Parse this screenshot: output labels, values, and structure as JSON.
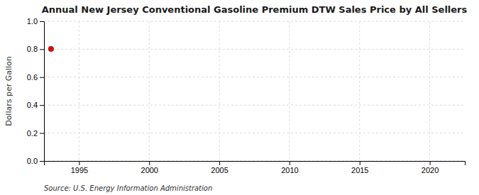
{
  "chart_data": {
    "type": "scatter",
    "title": "Annual New Jersey Conventional Gasoline Premium DTW Sales Price by All Sellers",
    "ylabel": "Dollars per Gallon",
    "source": "Source: U.S. Energy Information Administration",
    "x": [
      1993.0
    ],
    "values": [
      0.802
    ],
    "color": "#cc1111",
    "xlim": [
      1992.5,
      2022.5
    ],
    "ylim": [
      0.0,
      1.0
    ],
    "xticks": [
      1995,
      2000,
      2005,
      2010,
      2015,
      2020
    ],
    "yticks": [
      {
        "value": 0.0,
        "label": "0.0"
      },
      0.2,
      0.4,
      0.6,
      0.8,
      {
        "value": 1.0,
        "label": "1.0"
      }
    ],
    "grid": true
  }
}
